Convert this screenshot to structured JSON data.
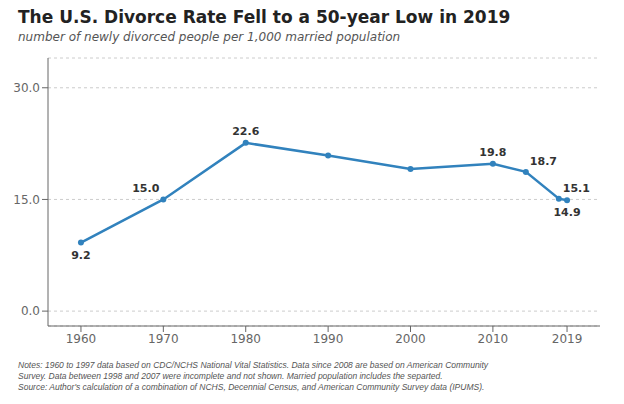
{
  "chart_data": {
    "type": "line",
    "title": "The U.S. Divorce Rate Fell to a 50-year Low in 2019",
    "subtitle": "number of newly divorced people per 1,000 married population",
    "notes": [
      "Notes: 1960 to 1997 data based on CDC/NCHS National Vital Statistics. Data since 2008 are based on American Community",
      "Survey. Data between 1998 and 2007 were incomplete and not shown. Married population includes the separted.",
      "Source: Author's calculation of a combination of NCHS, Decennial Census, and American Community Survey data (IPUMS)."
    ],
    "x": [
      1960,
      1970,
      1980,
      1990,
      2000,
      2010,
      2014,
      2018,
      2019
    ],
    "values": [
      9.2,
      15.0,
      22.6,
      20.9,
      19.1,
      19.8,
      18.7,
      15.1,
      14.9
    ],
    "value_labels": [
      "9.2",
      "15.0",
      "22.6",
      null,
      null,
      "19.8",
      "18.7",
      "15.1",
      "14.9"
    ],
    "xlim": [
      1956,
      2023
    ],
    "xticks": [
      1960,
      1970,
      1980,
      1990,
      2000,
      2010,
      2019
    ],
    "ylim": [
      -2,
      34
    ],
    "yticks": [
      {
        "value": 0.0,
        "label": "0.0"
      },
      {
        "value": 15.0,
        "label": "15.0"
      },
      {
        "value": 30.0,
        "label": "30.0"
      }
    ],
    "grid": true,
    "marker": "circle"
  }
}
